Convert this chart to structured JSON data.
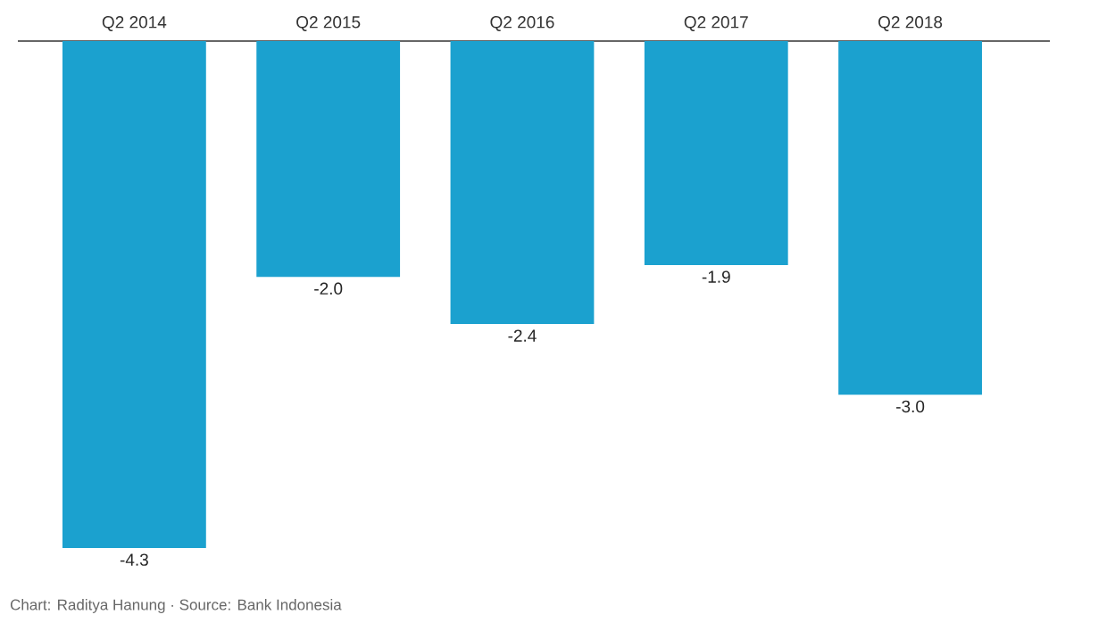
{
  "chart_data": {
    "type": "bar",
    "categories": [
      "Q2 2014",
      "Q2 2015",
      "Q2 2016",
      "Q2 2017",
      "Q2 2018"
    ],
    "values": [
      -4.3,
      -2.0,
      -2.4,
      -1.9,
      -3.0
    ],
    "value_labels": [
      "-4.3",
      "-2.0",
      "-2.4",
      "-1.9",
      "-3.0"
    ],
    "color": "#1ba1cf",
    "annotations": [
      "Chart: Raditya Hanung · Source: Bank Indonesia"
    ]
  }
}
